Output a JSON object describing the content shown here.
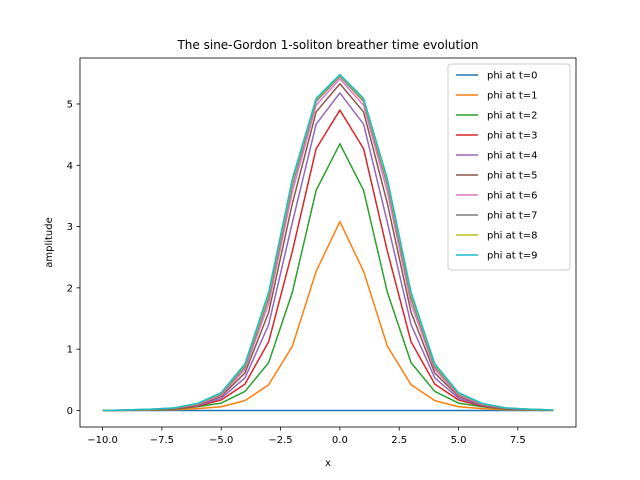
{
  "chart_data": {
    "type": "line",
    "title": "The sine-Gordon 1-soliton breather time evolution",
    "xlabel": "x",
    "ylabel": "amplitude",
    "xlim": [
      -10.95,
      9.95
    ],
    "ylim": [
      -0.27,
      5.75
    ],
    "xticks": [
      -10.0,
      -7.5,
      -5.0,
      -2.5,
      0.0,
      2.5,
      5.0,
      7.5
    ],
    "xtick_labels": [
      "−10.0",
      "−7.5",
      "−5.0",
      "−2.5",
      "0.0",
      "2.5",
      "5.0",
      "7.5"
    ],
    "yticks": [
      0,
      1,
      2,
      3,
      4,
      5
    ],
    "ytick_labels": [
      "0",
      "1",
      "2",
      "3",
      "4",
      "5"
    ],
    "grid": false,
    "legend_position": "top-right",
    "x": [
      -10,
      -9,
      -8,
      -7,
      -6,
      -5,
      -4,
      -3,
      -2,
      -1,
      0,
      1,
      2,
      3,
      4,
      5,
      6,
      7,
      8,
      9
    ],
    "series": [
      {
        "name": "phi at t=0",
        "color": "#1f77b4",
        "values": [
          0,
          0,
          0,
          0,
          0,
          0,
          0,
          0,
          0,
          0,
          0,
          0,
          0,
          0,
          0,
          0,
          0,
          0,
          0,
          0
        ]
      },
      {
        "name": "phi at t=1",
        "color": "#ff7f0e",
        "values": [
          0.0,
          0.0,
          0.005,
          0.012,
          0.03,
          0.06,
          0.16,
          0.42,
          1.05,
          2.27,
          3.08,
          2.27,
          1.05,
          0.42,
          0.16,
          0.06,
          0.03,
          0.012,
          0.005,
          0.0
        ]
      },
      {
        "name": "phi at t=2",
        "color": "#2ca02c",
        "values": [
          0.0,
          0.003,
          0.01,
          0.02,
          0.06,
          0.12,
          0.31,
          0.78,
          1.93,
          3.59,
          4.35,
          3.59,
          1.93,
          0.78,
          0.31,
          0.12,
          0.06,
          0.02,
          0.01,
          0.003
        ]
      },
      {
        "name": "phi at t=3",
        "color": "#d62728",
        "values": [
          0.0,
          0.004,
          0.013,
          0.025,
          0.07,
          0.17,
          0.43,
          1.12,
          2.6,
          4.27,
          4.9,
          4.27,
          2.6,
          1.12,
          0.43,
          0.17,
          0.07,
          0.025,
          0.013,
          0.004
        ]
      },
      {
        "name": "phi at t=4",
        "color": "#9467bd",
        "values": [
          0.0,
          0.005,
          0.015,
          0.03,
          0.08,
          0.2,
          0.53,
          1.4,
          3.07,
          4.67,
          5.18,
          4.67,
          3.07,
          1.4,
          0.53,
          0.2,
          0.08,
          0.03,
          0.015,
          0.005
        ]
      },
      {
        "name": "phi at t=5",
        "color": "#8c564b",
        "values": [
          0.0,
          0.006,
          0.017,
          0.034,
          0.09,
          0.23,
          0.61,
          1.6,
          3.38,
          4.87,
          5.33,
          4.87,
          3.38,
          1.6,
          0.61,
          0.23,
          0.09,
          0.034,
          0.017,
          0.006
        ]
      },
      {
        "name": "phi at t=6",
        "color": "#e377c2",
        "values": [
          0.0,
          0.007,
          0.018,
          0.037,
          0.1,
          0.25,
          0.67,
          1.74,
          3.57,
          4.98,
          5.41,
          4.98,
          3.57,
          1.74,
          0.67,
          0.25,
          0.1,
          0.037,
          0.018,
          0.007
        ]
      },
      {
        "name": "phi at t=7",
        "color": "#7f7f7f",
        "values": [
          0.0,
          0.007,
          0.019,
          0.039,
          0.11,
          0.27,
          0.71,
          1.83,
          3.68,
          5.04,
          5.45,
          5.04,
          3.68,
          1.83,
          0.71,
          0.27,
          0.11,
          0.039,
          0.019,
          0.007
        ]
      },
      {
        "name": "phi at t=8",
        "color": "#bcbd22",
        "values": [
          0.0,
          0.008,
          0.02,
          0.04,
          0.11,
          0.28,
          0.74,
          1.89,
          3.74,
          5.07,
          5.47,
          5.07,
          3.74,
          1.89,
          0.74,
          0.28,
          0.11,
          0.04,
          0.02,
          0.008
        ]
      },
      {
        "name": "phi at t=9",
        "color": "#17becf",
        "values": [
          0.0,
          0.008,
          0.02,
          0.041,
          0.115,
          0.29,
          0.76,
          1.93,
          3.78,
          5.09,
          5.48,
          5.09,
          3.78,
          1.93,
          0.76,
          0.29,
          0.115,
          0.041,
          0.02,
          0.008
        ]
      }
    ]
  }
}
